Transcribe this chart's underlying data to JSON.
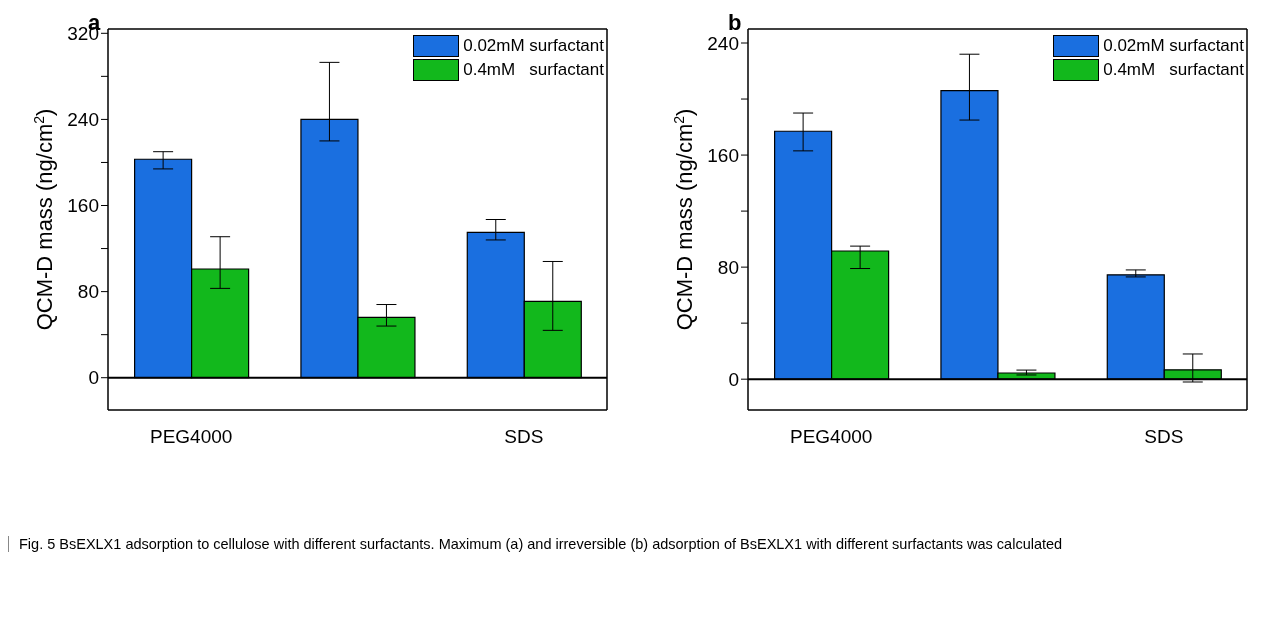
{
  "chart_data": [
    {
      "type": "bar",
      "categories": [
        "PEG4000",
        null,
        "SDS"
      ],
      "ylabel": "QCM-D mass (ng/cm$^{2}$)",
      "ylim": [
        -30,
        324
      ],
      "yticks": [
        0,
        {
          "value": 40,
          "label": null
        },
        80,
        {
          "value": 120,
          "label": null
        },
        160,
        {
          "value": 200,
          "label": null
        },
        240,
        {
          "value": 280,
          "label": null
        },
        320
      ],
      "series": [
        {
          "name": "0.02mM surfactant",
          "color": "#1a6fe0",
          "values": [
            203,
            240,
            135
          ],
          "errors": [
            [
              194,
              210
            ],
            [
              220,
              293
            ],
            [
              128,
              147
            ]
          ]
        },
        {
          "name": "0.4mM   surfactant",
          "color": "#12b81c",
          "values": [
            101,
            56,
            71
          ],
          "errors": [
            [
              83,
              131
            ],
            [
              48,
              68
            ],
            [
              44,
              108
            ]
          ]
        }
      ],
      "ref_lines": [
        {
          "axis": "y",
          "value": 0
        }
      ],
      "legend": "top right",
      "grid": false,
      "annotations": [
        "a",
        "Fig. 5 BsEXLX1 adsorption to cellulose with different surfactants. Maximum (a) and irreversible (b) adsorption of BsEXLX1 with different surfactants was calculated"
      ]
    },
    {
      "type": "bar",
      "categories": [
        "PEG4000",
        null,
        "SDS"
      ],
      "ylabel": "QCM-D mass (ng/cm$^{2}$)",
      "ylim": [
        -22,
        250
      ],
      "yticks": [
        0,
        {
          "value": 40,
          "label": null
        },
        80,
        {
          "value": 120,
          "label": null
        },
        160,
        {
          "value": 200,
          "label": null
        },
        240
      ],
      "series": [
        {
          "name": "0.02mM surfactant",
          "color": "#1a6fe0",
          "values": [
            177,
            206,
            74.5
          ],
          "errors": [
            [
              163,
              190
            ],
            [
              185,
              232
            ],
            [
              73,
              78
            ]
          ]
        },
        {
          "name": "0.4mM   surfactant",
          "color": "#12b81c",
          "values": [
            91.5,
            4.4,
            6.7
          ],
          "errors": [
            [
              79,
              95
            ],
            [
              3,
              6.5
            ],
            [
              -2,
              18
            ]
          ]
        }
      ],
      "ref_lines": [
        {
          "axis": "y",
          "value": 0
        }
      ],
      "legend": "top right",
      "grid": false,
      "annotations": [
        "b"
      ]
    }
  ]
}
